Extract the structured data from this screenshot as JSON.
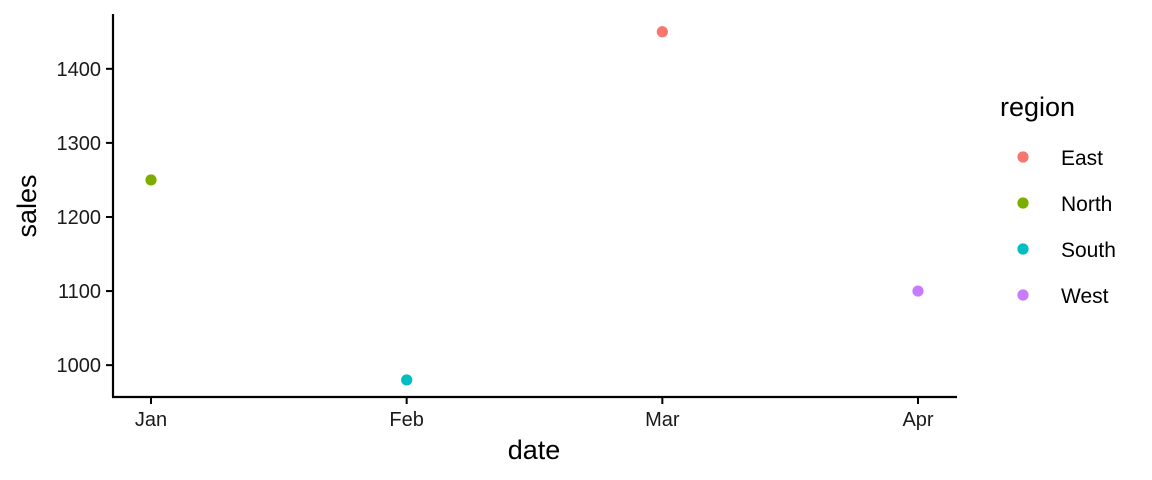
{
  "chart_data": {
    "type": "scatter",
    "xlabel": "date",
    "ylabel": "sales",
    "x_categories": [
      "Jan",
      "Feb",
      "Mar",
      "Apr"
    ],
    "yticks": [
      1000,
      1100,
      1200,
      1300,
      1400
    ],
    "ylim": [
      957,
      1474
    ],
    "legend": {
      "title": "region",
      "position": "right"
    },
    "grid": false,
    "series": [
      {
        "name": "East",
        "color": "#F8766D",
        "x": "Mar",
        "y": 1450
      },
      {
        "name": "North",
        "color": "#7CAE00",
        "x": "Jan",
        "y": 1250
      },
      {
        "name": "South",
        "color": "#00BFC4",
        "x": "Feb",
        "y": 980
      },
      {
        "name": "West",
        "color": "#C77CFF",
        "x": "Apr",
        "y": 1100
      }
    ]
  }
}
